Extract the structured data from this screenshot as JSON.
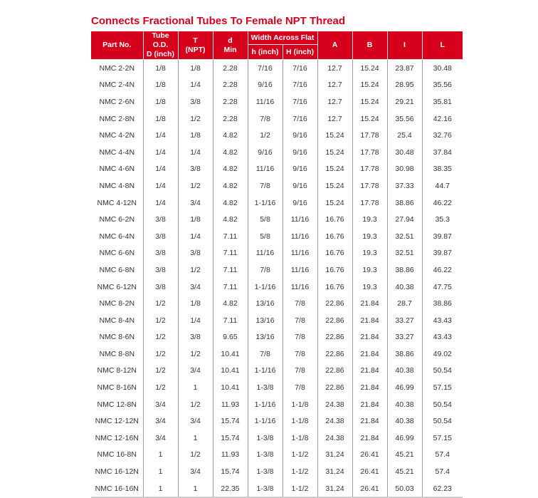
{
  "title": "Connects Fractional Tubes To Female NPT Thread",
  "colors": {
    "header_bg": "#d6001c",
    "title": "#d6001c"
  },
  "headers": {
    "part_no": "Part No.",
    "tube_od_1": "Tube O.D.",
    "tube_od_2": "D (inch)",
    "t_1": "T",
    "t_2": "(NPT)",
    "d_1": "d",
    "d_2": "Min",
    "waf": "Width Across Flat",
    "h": "h (inch)",
    "H": "H (inch)",
    "A": "A",
    "B": "B",
    "I": "I",
    "L": "L"
  },
  "rows": [
    [
      "NMC 2-2N",
      "1/8",
      "1/8",
      "2.28",
      "7/16",
      "7/16",
      "12.7",
      "15.24",
      "23.87",
      "30.48"
    ],
    [
      "NMC 2-4N",
      "1/8",
      "1/4",
      "2.28",
      "9/16",
      "7/16",
      "12.7",
      "15.24",
      "28.95",
      "35.56"
    ],
    [
      "NMC 2-6N",
      "1/8",
      "3/8",
      "2.28",
      "11/16",
      "7/16",
      "12.7",
      "15.24",
      "29.21",
      "35.81"
    ],
    [
      "NMC 2-8N",
      "1/8",
      "1/2",
      "2.28",
      "7/8",
      "7/16",
      "12.7",
      "15.24",
      "35.56",
      "42.16"
    ],
    [
      "NMC 4-2N",
      "1/4",
      "1/8",
      "4.82",
      "1/2",
      "9/16",
      "15.24",
      "17.78",
      "25.4",
      "32.76"
    ],
    [
      "NMC 4-4N",
      "1/4",
      "1/4",
      "4.82",
      "9/16",
      "9/16",
      "15.24",
      "17.78",
      "30.48",
      "37.84"
    ],
    [
      "NMC 4-6N",
      "1/4",
      "3/8",
      "4.82",
      "11/16",
      "9/16",
      "15.24",
      "17.78",
      "30.98",
      "38.35"
    ],
    [
      "NMC 4-8N",
      "1/4",
      "1/2",
      "4.82",
      "7/8",
      "9/16",
      "15.24",
      "17.78",
      "37.33",
      "44.7"
    ],
    [
      "NMC 4-12N",
      "1/4",
      "3/4",
      "4.82",
      "1-1/16",
      "9/16",
      "15.24",
      "17.78",
      "38.86",
      "46.22"
    ],
    [
      "NMC 6-2N",
      "3/8",
      "1/8",
      "4.82",
      "5/8",
      "11/16",
      "16.76",
      "19.3",
      "27.94",
      "35.3"
    ],
    [
      "NMC 6-4N",
      "3/8",
      "1/4",
      "7.11",
      "5/8",
      "11/16",
      "16.76",
      "19.3",
      "32.51",
      "39.87"
    ],
    [
      "NMC 6-6N",
      "3/8",
      "3/8",
      "7.11",
      "11/16",
      "11/16",
      "16.76",
      "19.3",
      "32.51",
      "39.87"
    ],
    [
      "NMC 6-8N",
      "3/8",
      "1/2",
      "7.11",
      "7/8",
      "11/16",
      "16.76",
      "19.3",
      "38.86",
      "46.22"
    ],
    [
      "NMC 6-12N",
      "3/8",
      "3/4",
      "7.11",
      "1-1/16",
      "11/16",
      "16.76",
      "19.3",
      "40.38",
      "47.75"
    ],
    [
      "NMC 8-2N",
      "1/2",
      "1/8",
      "4.82",
      "13/16",
      "7/8",
      "22.86",
      "21.84",
      "28.7",
      "38.86"
    ],
    [
      "NMC 8-4N",
      "1/2",
      "1/4",
      "7.11",
      "13/16",
      "7/8",
      "22.86",
      "21.84",
      "33.27",
      "43.43"
    ],
    [
      "NMC 8-6N",
      "1/2",
      "3/8",
      "9.65",
      "13/16",
      "7/8",
      "22.86",
      "21.84",
      "33.27",
      "43.43"
    ],
    [
      "NMC 8-8N",
      "1/2",
      "1/2",
      "10.41",
      "7/8",
      "7/8",
      "22.86",
      "21.84",
      "38.86",
      "49.02"
    ],
    [
      "NMC 8-12N",
      "1/2",
      "3/4",
      "10.41",
      "1-1/16",
      "7/8",
      "22.86",
      "21.84",
      "40.38",
      "50.54"
    ],
    [
      "NMC 8-16N",
      "1/2",
      "1",
      "10.41",
      "1-3/8",
      "7/8",
      "22.86",
      "21.84",
      "46.99",
      "57.15"
    ],
    [
      "NMC 12-8N",
      "3/4",
      "1/2",
      "11.93",
      "1-1/16",
      "1-1/8",
      "24.38",
      "21.84",
      "40.38",
      "50.54"
    ],
    [
      "NMC 12-12N",
      "3/4",
      "3/4",
      "15.74",
      "1-1/16",
      "1-1/8",
      "24.38",
      "21.84",
      "40.38",
      "50.54"
    ],
    [
      "NMC 12-16N",
      "3/4",
      "1",
      "15.74",
      "1-3/8",
      "1-1/8",
      "24.38",
      "21.84",
      "46.99",
      "57.15"
    ],
    [
      "NMC 16-8N",
      "1",
      "1/2",
      "11.93",
      "1-3/8",
      "1-1/2",
      "31.24",
      "26.41",
      "45.21",
      "57.4"
    ],
    [
      "NMC 16-12N",
      "1",
      "3/4",
      "15.74",
      "1-3/8",
      "1-1/2",
      "31.24",
      "26.41",
      "45.21",
      "57.4"
    ],
    [
      "NMC 16-16N",
      "1",
      "1",
      "22.35",
      "1-3/8",
      "1-1/2",
      "31.24",
      "26.41",
      "50.03",
      "62.23"
    ]
  ]
}
